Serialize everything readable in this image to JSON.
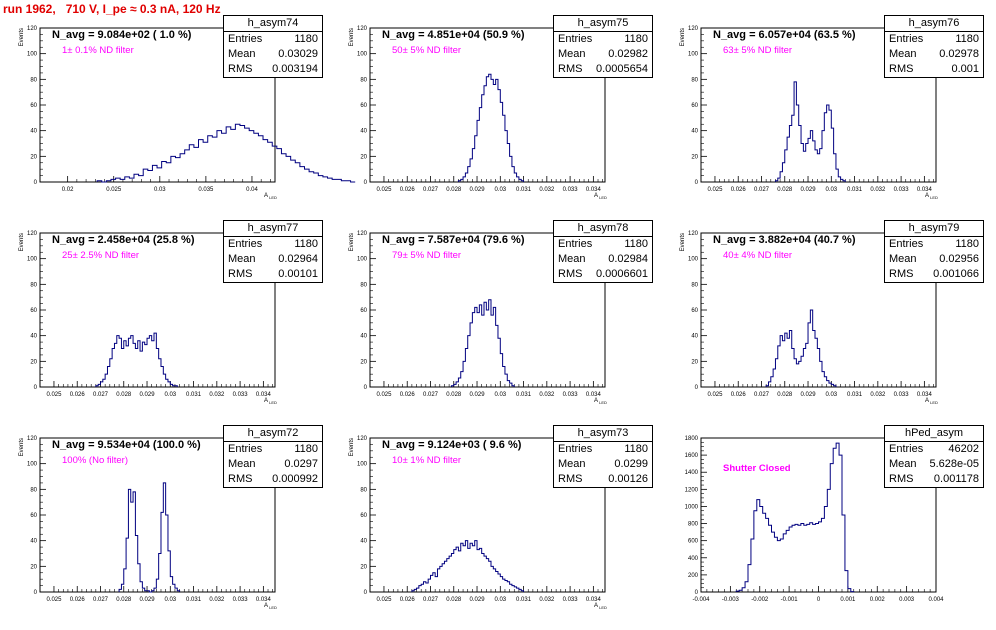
{
  "title": "run 1962,   710 V, I_pe ≈ 0.3 nA, 120 Hz",
  "chart_data": [
    {
      "type": "bar",
      "name": "h_asym74",
      "n_avg": "N_avg = 9.084e+02 ( 1.0 %)",
      "filter": "1± 0.1% ND filter",
      "stats": {
        "entries": "1180",
        "mean": "0.03029",
        "rms": "0.003194"
      },
      "ylabel": "Events",
      "xlabel": "A",
      "xlabel_sub": "LED",
      "xlim": [
        0.017,
        0.0425
      ],
      "ylim": [
        0,
        120
      ],
      "yticks": [
        0,
        20,
        40,
        60,
        80,
        100,
        120
      ],
      "xticks": [
        0.02,
        0.025,
        0.03,
        0.035,
        0.04
      ],
      "xticklabels": [
        "0.02",
        "0.025",
        "0.03",
        "0.035",
        "0.04"
      ],
      "bin_start": 0.0232,
      "bin_width": 0.0005,
      "values": [
        1,
        0,
        1,
        2,
        3,
        2,
        4,
        3,
        6,
        5,
        10,
        9,
        13,
        11,
        16,
        15,
        20,
        19,
        22,
        25,
        29,
        27,
        33,
        31,
        36,
        35,
        40,
        38,
        43,
        41,
        45,
        44,
        42,
        40,
        38,
        36,
        33,
        31,
        28,
        26,
        22,
        20,
        17,
        15,
        12,
        10,
        8,
        7,
        5,
        4,
        3,
        2,
        2,
        1,
        1,
        0
      ]
    },
    {
      "type": "bar",
      "name": "h_asym75",
      "n_avg": "N_avg = 4.851e+04 (50.9 %)",
      "filter": "50± 5% ND filter",
      "stats": {
        "entries": "1180",
        "mean": "0.02982",
        "rms": "0.0005654"
      },
      "ylabel": "Events",
      "xlabel": "A",
      "xlabel_sub": "LED",
      "xlim": [
        0.0244,
        0.0345
      ],
      "ylim": [
        0,
        120
      ],
      "yticks": [
        0,
        20,
        40,
        60,
        80,
        100,
        120
      ],
      "xticks": [
        0.025,
        0.026,
        0.027,
        0.028,
        0.029,
        0.03,
        0.031,
        0.032,
        0.033,
        0.034
      ],
      "xticklabels": [
        "0.025",
        "0.026",
        "0.027",
        "0.028",
        "0.029",
        "0.03",
        "0.031",
        "0.032",
        "0.033",
        "0.034"
      ],
      "bin_start": 0.0282,
      "bin_width": 0.0001,
      "values": [
        1,
        2,
        4,
        7,
        12,
        18,
        26,
        36,
        48,
        58,
        68,
        75,
        82,
        84,
        80,
        76,
        80,
        72,
        62,
        52,
        40,
        30,
        20,
        12,
        7,
        4,
        2,
        1
      ]
    },
    {
      "type": "bar",
      "name": "h_asym76",
      "n_avg": "N_avg = 6.057e+04 (63.5 %)",
      "filter": "63± 5% ND filter",
      "stats": {
        "entries": "1180",
        "mean": "0.02978",
        "rms": "0.001"
      },
      "ylabel": "Events",
      "xlabel": "A",
      "xlabel_sub": "LED",
      "xlim": [
        0.0244,
        0.0345
      ],
      "ylim": [
        0,
        120
      ],
      "yticks": [
        0,
        20,
        40,
        60,
        80,
        100,
        120
      ],
      "xticks": [
        0.025,
        0.026,
        0.027,
        0.028,
        0.029,
        0.03,
        0.031,
        0.032,
        0.033,
        0.034
      ],
      "xticklabels": [
        "0.025",
        "0.026",
        "0.027",
        "0.028",
        "0.029",
        "0.03",
        "0.031",
        "0.032",
        "0.033",
        "0.034"
      ],
      "bin_start": 0.0276,
      "bin_width": 0.0001,
      "values": [
        1,
        3,
        8,
        15,
        25,
        35,
        44,
        52,
        78,
        60,
        44,
        30,
        24,
        30,
        34,
        40,
        32,
        25,
        22,
        26,
        40,
        54,
        60,
        56,
        42,
        22,
        10,
        4,
        2,
        1
      ]
    },
    {
      "type": "bar",
      "name": "h_asym77",
      "n_avg": "N_avg = 2.458e+04 (25.8 %)",
      "filter": "25± 2.5% ND filter",
      "stats": {
        "entries": "1180",
        "mean": "0.02964",
        "rms": "0.00101"
      },
      "ylabel": "Events",
      "xlabel": "A",
      "xlabel_sub": "LED",
      "xlim": [
        0.0244,
        0.0345
      ],
      "ylim": [
        0,
        120
      ],
      "yticks": [
        0,
        20,
        40,
        60,
        80,
        100,
        120
      ],
      "xticks": [
        0.025,
        0.026,
        0.027,
        0.028,
        0.029,
        0.03,
        0.031,
        0.032,
        0.033,
        0.034
      ],
      "xticklabels": [
        "0.025",
        "0.026",
        "0.027",
        "0.028",
        "0.029",
        "0.03",
        "0.031",
        "0.032",
        "0.033",
        "0.034"
      ],
      "bin_start": 0.0268,
      "bin_width": 0.0001,
      "values": [
        1,
        2,
        4,
        6,
        10,
        16,
        22,
        30,
        34,
        40,
        38,
        30,
        36,
        32,
        38,
        40,
        34,
        30,
        36,
        28,
        35,
        33,
        38,
        40,
        36,
        42,
        30,
        22,
        16,
        10,
        6,
        4,
        2,
        1,
        1
      ]
    },
    {
      "type": "bar",
      "name": "h_asym78",
      "n_avg": "N_avg = 7.587e+04 (79.6 %)",
      "filter": "79± 5% ND filter",
      "stats": {
        "entries": "1180",
        "mean": "0.02984",
        "rms": "0.0006601"
      },
      "ylabel": "Events",
      "xlabel": "A",
      "xlabel_sub": "LED",
      "xlim": [
        0.0244,
        0.0345
      ],
      "ylim": [
        0,
        120
      ],
      "yticks": [
        0,
        20,
        40,
        60,
        80,
        100,
        120
      ],
      "xticks": [
        0.025,
        0.026,
        0.027,
        0.028,
        0.029,
        0.03,
        0.031,
        0.032,
        0.033,
        0.034
      ],
      "xticklabels": [
        "0.025",
        "0.026",
        "0.027",
        "0.028",
        "0.029",
        "0.03",
        "0.031",
        "0.032",
        "0.033",
        "0.034"
      ],
      "bin_start": 0.0279,
      "bin_width": 0.0001,
      "values": [
        1,
        2,
        4,
        7,
        12,
        20,
        30,
        40,
        50,
        58,
        62,
        58,
        64,
        56,
        66,
        60,
        68,
        56,
        62,
        48,
        38,
        26,
        16,
        10,
        5,
        3,
        1
      ]
    },
    {
      "type": "bar",
      "name": "h_asym79",
      "n_avg": "N_avg = 3.882e+04 (40.7 %)",
      "filter": "40± 4% ND filter",
      "stats": {
        "entries": "1180",
        "mean": "0.02956",
        "rms": "0.001066"
      },
      "ylabel": "Events",
      "xlabel": "A",
      "xlabel_sub": "LED",
      "xlim": [
        0.0244,
        0.0345
      ],
      "ylim": [
        0,
        120
      ],
      "yticks": [
        0,
        20,
        40,
        60,
        80,
        100,
        120
      ],
      "xticks": [
        0.025,
        0.026,
        0.027,
        0.028,
        0.029,
        0.03,
        0.031,
        0.032,
        0.033,
        0.034
      ],
      "xticklabels": [
        "0.025",
        "0.026",
        "0.027",
        "0.028",
        "0.029",
        "0.03",
        "0.031",
        "0.032",
        "0.033",
        "0.034"
      ],
      "bin_start": 0.0272,
      "bin_width": 0.0001,
      "values": [
        1,
        4,
        8,
        14,
        22,
        32,
        40,
        36,
        42,
        38,
        44,
        30,
        22,
        18,
        20,
        24,
        30,
        34,
        50,
        60,
        44,
        38,
        30,
        20,
        12,
        8,
        5,
        3,
        2,
        1
      ]
    },
    {
      "type": "bar",
      "name": "h_asym72",
      "n_avg": "N_avg = 9.534e+04 (100.0 %)",
      "filter": "100% (No filter)",
      "stats": {
        "entries": "1180",
        "mean": "0.0297",
        "rms": "0.000992"
      },
      "ylabel": "Events",
      "xlabel": "A",
      "xlabel_sub": "LED",
      "xlim": [
        0.0244,
        0.0345
      ],
      "ylim": [
        0,
        120
      ],
      "yticks": [
        0,
        20,
        40,
        60,
        80,
        100,
        120
      ],
      "xticks": [
        0.025,
        0.026,
        0.027,
        0.028,
        0.029,
        0.03,
        0.031,
        0.032,
        0.033,
        0.034
      ],
      "xticklabels": [
        "0.025",
        "0.026",
        "0.027",
        "0.028",
        "0.029",
        "0.03",
        "0.031",
        "0.032",
        "0.033",
        "0.034"
      ],
      "bin_start": 0.0278,
      "bin_width": 0.0001,
      "values": [
        2,
        6,
        18,
        42,
        80,
        70,
        78,
        44,
        22,
        8,
        3,
        1,
        1,
        0,
        1,
        3,
        10,
        30,
        62,
        85,
        60,
        32,
        12,
        6,
        3,
        1
      ]
    },
    {
      "type": "bar",
      "name": "h_asym73",
      "n_avg": "N_avg = 9.124e+03 ( 9.6 %)",
      "filter": "10± 1% ND filter",
      "stats": {
        "entries": "1180",
        "mean": "0.0299",
        "rms": "0.00126"
      },
      "ylabel": "Events",
      "xlabel": "A",
      "xlabel_sub": "LED",
      "xlim": [
        0.0244,
        0.0345
      ],
      "ylim": [
        0,
        120
      ],
      "yticks": [
        0,
        20,
        40,
        60,
        80,
        100,
        120
      ],
      "xticks": [
        0.025,
        0.026,
        0.027,
        0.028,
        0.029,
        0.03,
        0.031,
        0.032,
        0.033,
        0.034
      ],
      "xticklabels": [
        "0.025",
        "0.026",
        "0.027",
        "0.028",
        "0.029",
        "0.03",
        "0.031",
        "0.032",
        "0.033",
        "0.034"
      ],
      "bin_start": 0.0262,
      "bin_width": 0.0001,
      "values": [
        1,
        2,
        3,
        5,
        6,
        8,
        7,
        10,
        13,
        15,
        12,
        18,
        20,
        22,
        24,
        26,
        28,
        30,
        33,
        35,
        32,
        38,
        36,
        40,
        34,
        38,
        36,
        40,
        33,
        34,
        30,
        28,
        26,
        24,
        20,
        18,
        16,
        14,
        12,
        10,
        9,
        8,
        6,
        5,
        4,
        3,
        2,
        1
      ]
    },
    {
      "type": "bar",
      "name": "hPed_asym",
      "n_avg": "",
      "filter": "Shutter Closed",
      "stats": {
        "entries": "46202",
        "mean": "5.628e-05",
        "rms": "0.001178"
      },
      "ylabel": "",
      "xlabel": "",
      "xlabel_sub": "",
      "xlim": [
        -0.004,
        0.004
      ],
      "ylim": [
        0,
        1800
      ],
      "yticks": [
        0,
        200,
        400,
        600,
        800,
        1000,
        1200,
        1400,
        1600,
        1800
      ],
      "xticks": [
        -0.004,
        -0.003,
        -0.002,
        -0.001,
        0,
        0.001,
        0.002,
        0.003,
        0.004
      ],
      "xticklabels": [
        "-0.004",
        "-0.003",
        "-0.002",
        "-0.001",
        "0",
        "0.001",
        "0.002",
        "0.003",
        "0.004"
      ],
      "bin_start": -0.0028,
      "bin_width": 0.0001,
      "values": [
        10,
        20,
        50,
        120,
        320,
        620,
        950,
        1080,
        1000,
        920,
        860,
        780,
        700,
        640,
        600,
        620,
        680,
        720,
        760,
        780,
        790,
        780,
        800,
        780,
        790,
        810,
        790,
        800,
        820,
        860,
        1000,
        1200,
        1500,
        1680,
        1740,
        1600,
        900,
        250,
        40,
        5
      ]
    }
  ]
}
